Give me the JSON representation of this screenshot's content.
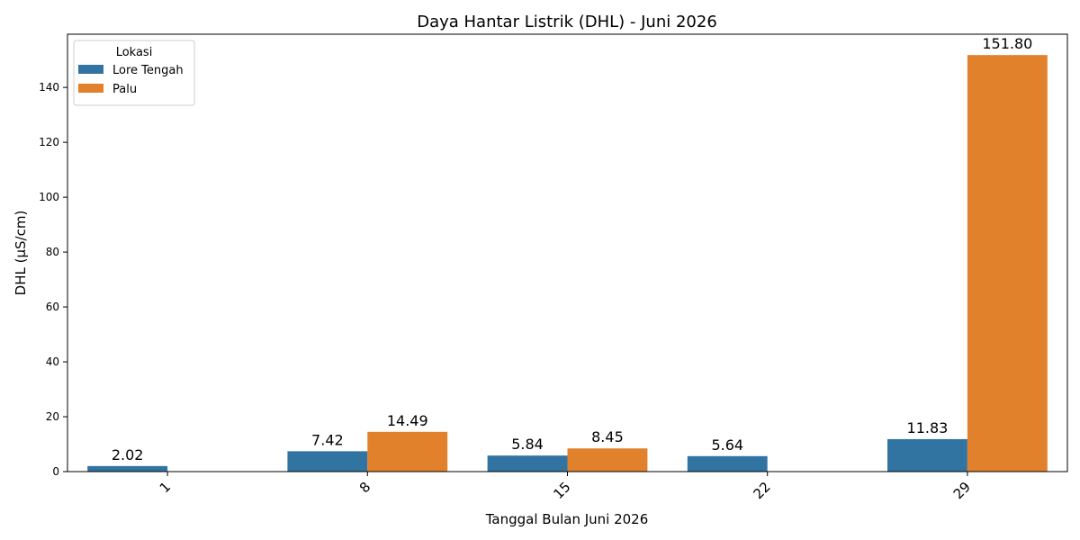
{
  "chart_data": {
    "type": "bar",
    "title": "Daya Hantar Listrik (DHL) - Juni 2026",
    "x_label": "Tanggal Bulan Juni 2026",
    "y_label": "DHL (µS/cm)",
    "legend_title": "Lokasi",
    "legend_position": "upper-left",
    "categories": [
      "1",
      "8",
      "15",
      "22",
      "29"
    ],
    "series": [
      {
        "name": "Lore Tengah",
        "color": "#3274a1",
        "values": [
          2.02,
          7.42,
          5.84,
          5.64,
          11.83
        ],
        "value_labels": [
          "2.02",
          "7.42",
          "5.84",
          "5.64",
          "11.83"
        ]
      },
      {
        "name": "Palu",
        "color": "#e1812c",
        "values": [
          null,
          14.49,
          8.45,
          null,
          151.8
        ],
        "value_labels": [
          null,
          "14.49",
          "8.45",
          null,
          "151.80"
        ]
      }
    ],
    "ylim": [
      0,
      159.4
    ],
    "yticks": [
      0,
      20,
      40,
      60,
      80,
      100,
      120,
      140
    ],
    "grid": false
  }
}
